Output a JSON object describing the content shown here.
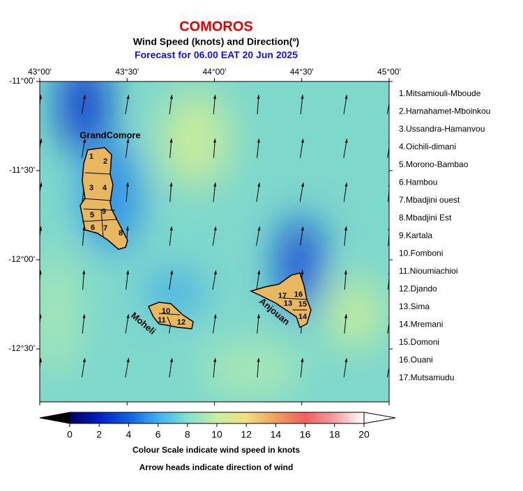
{
  "header": {
    "title": "COMOROS",
    "subtitle": "Wind Speed (knots) and Direction(º)",
    "forecast": "Forecast for  06.00 EAT 20 Jun 2025"
  },
  "map": {
    "lon_labels": [
      "43°00'",
      "43°30'",
      "44°00'",
      "44°30'",
      "45°00'"
    ],
    "lat_labels": [
      "-11°00'",
      "-11°30'",
      "-12°00'",
      "-12°30'"
    ],
    "island_labels": [
      "GrandComore",
      "Moheli",
      "Anjouan"
    ],
    "district_labels": [
      "1",
      "2",
      "3",
      "4",
      "5",
      "6",
      "7",
      "8",
      "9",
      "10",
      "11",
      "12",
      "13",
      "14",
      "15",
      "16",
      "17"
    ]
  },
  "legend": {
    "items": [
      "1.Mitsamiouli-Mboude",
      "2.Hamahamet-Mboinkou",
      "3.Ussandra-Hamanvou",
      "4.Oichili-dimani",
      "5.Morono-Bambao",
      "6.Hambou",
      "7.Mbadjini ouest",
      "8.Mbadjini Est",
      "9.Kartala",
      "10.Fomboni",
      "11.Nioumiachioi",
      "12.Djando",
      "13.Sima",
      "14.Mremani",
      "15.Domoni",
      "16.Ouani",
      "17.Mutsamudu"
    ]
  },
  "colorbar": {
    "min": 0,
    "max": 20,
    "ticks": [
      0,
      2,
      4,
      6,
      8,
      10,
      12,
      14,
      16,
      18,
      20
    ],
    "caption": "Colour Scale indicate wind speed in knots",
    "note": "Arrow heads indicate direction of wind"
  }
}
